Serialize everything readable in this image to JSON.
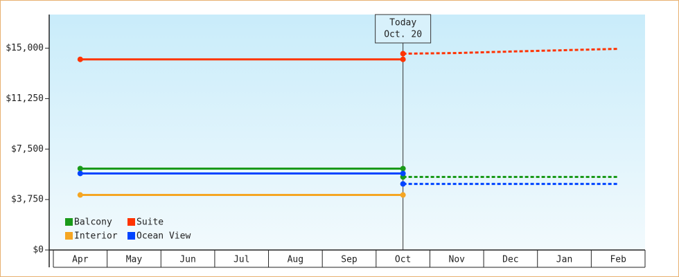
{
  "chart_data": {
    "type": "line",
    "categories": [
      "Apr",
      "May",
      "Jun",
      "Jul",
      "Aug",
      "Sep",
      "Oct",
      "Nov",
      "Dec",
      "Jan",
      "Feb"
    ],
    "series": [
      {
        "name": "Balcony",
        "color": "#1a9a1a",
        "values": [
          6050,
          6050,
          6050,
          6050,
          6050,
          6050,
          6050,
          null,
          null,
          null,
          null
        ],
        "forecast": [
          null,
          null,
          null,
          null,
          null,
          null,
          5430,
          5430,
          5430,
          5430,
          5430
        ]
      },
      {
        "name": "Suite",
        "color": "#ff3300",
        "values": [
          14170,
          14170,
          14170,
          14170,
          14170,
          14170,
          14170,
          null,
          null,
          null,
          null
        ],
        "forecast": [
          null,
          null,
          null,
          null,
          null,
          null,
          14590,
          14640,
          14750,
          14850,
          14950
        ]
      },
      {
        "name": "Interior",
        "color": "#f5a623",
        "values": [
          4090,
          4090,
          4090,
          4090,
          4090,
          4090,
          4090,
          null,
          null,
          null,
          null
        ]
      },
      {
        "name": "Ocean View",
        "color": "#0044ff",
        "values": [
          5690,
          5690,
          5690,
          5690,
          5690,
          5690,
          5690,
          null,
          null,
          null,
          null
        ],
        "forecast": [
          null,
          null,
          null,
          null,
          null,
          null,
          4910,
          4910,
          4910,
          4910,
          4910
        ]
      }
    ],
    "annotation": {
      "lines": [
        "Today",
        "Oct. 20"
      ]
    },
    "ylim": [
      0,
      17500
    ],
    "yticks": [
      {
        "value": 0,
        "label": "$0"
      },
      {
        "value": 3750,
        "label": "$3,750"
      },
      {
        "value": 7500,
        "label": "$7,500"
      },
      {
        "value": 11250,
        "label": "$11,250"
      },
      {
        "value": 15000,
        "label": "$15,000"
      }
    ]
  }
}
